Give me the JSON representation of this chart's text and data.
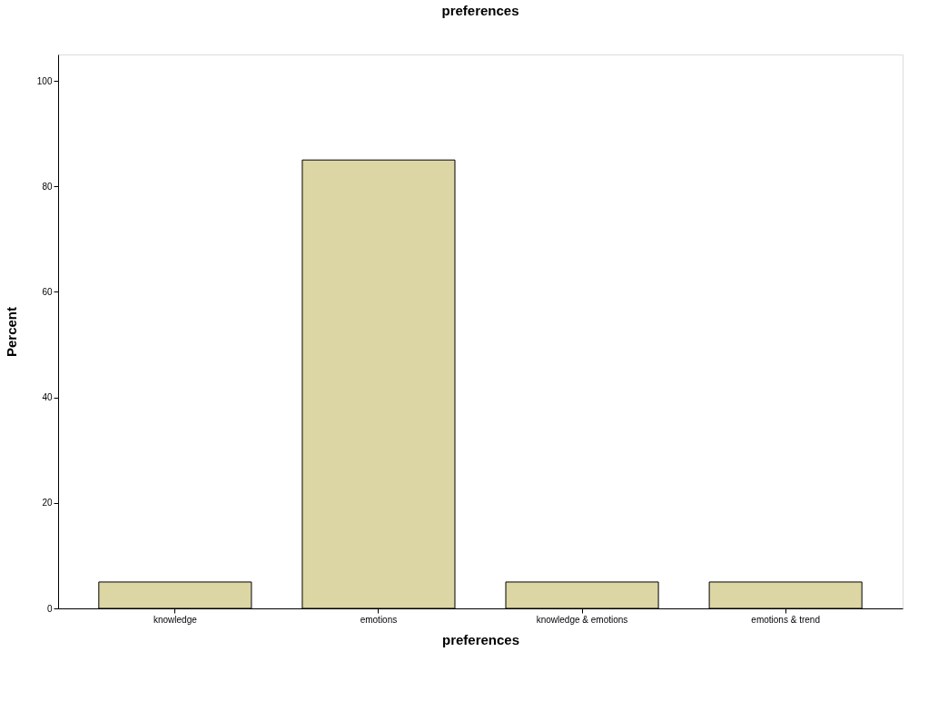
{
  "chart_data": {
    "type": "bar",
    "title": "preferences",
    "xlabel": "preferences",
    "ylabel": "Percent",
    "categories": [
      "knowledge",
      "emotions",
      "knowledge & emotions",
      "emotions & trend"
    ],
    "values": [
      5,
      85,
      5,
      5
    ],
    "color": "#dcd6a4",
    "ylim": [
      0,
      105
    ],
    "yticks": [
      0,
      20,
      40,
      60,
      80,
      100
    ],
    "grid": false
  }
}
